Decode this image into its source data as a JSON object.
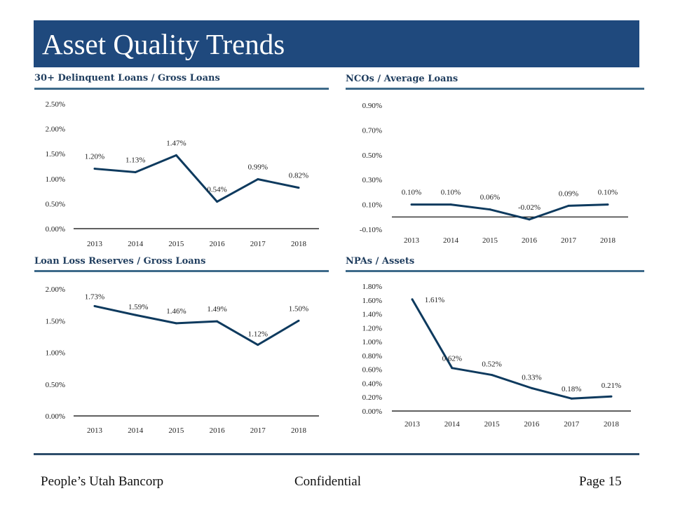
{
  "header": {
    "title": "Asset Quality Trends"
  },
  "colors": {
    "brand": "#1f497d",
    "line": "#0e3a5e",
    "rule": "#3e6a8a"
  },
  "footer": {
    "left": "People’s Utah Bancorp",
    "center": "Confidential",
    "right": "Page 15"
  },
  "chart_data": [
    {
      "type": "line",
      "title": "30+ Delinquent Loans / Gross Loans",
      "categories": [
        "2013",
        "2014",
        "2015",
        "2016",
        "2017",
        "2018"
      ],
      "values": [
        1.2,
        1.13,
        1.47,
        0.54,
        0.99,
        0.82
      ],
      "labels": [
        "1.20%",
        "1.13%",
        "1.47%",
        "0.54%",
        "0.99%",
        "0.82%"
      ],
      "yticks": [
        0,
        0.5,
        1.0,
        1.5,
        2.0,
        2.5
      ],
      "ytick_labels": [
        "0.00%",
        "0.50%",
        "1.00%",
        "1.50%",
        "2.00%",
        "2.50%"
      ],
      "ylim": [
        0,
        2.5
      ],
      "xlabel": "",
      "ylabel": "",
      "grid": false,
      "legend": "none"
    },
    {
      "type": "line",
      "title": "NCOs / Average Loans",
      "categories": [
        "2013",
        "2014",
        "2015",
        "2016",
        "2017",
        "2018"
      ],
      "values": [
        0.1,
        0.1,
        0.06,
        -0.02,
        0.09,
        0.1
      ],
      "labels": [
        "0.10%",
        "0.10%",
        "0.06%",
        "-0.02%",
        "0.09%",
        "0.10%"
      ],
      "yticks": [
        -0.1,
        0.1,
        0.3,
        0.5,
        0.7,
        0.9
      ],
      "ytick_labels": [
        "-0.10%",
        "0.10%",
        "0.30%",
        "0.50%",
        "0.70%",
        "0.90%"
      ],
      "ylim": [
        -0.1,
        0.9
      ],
      "axis_at": 0,
      "xlabel": "",
      "ylabel": "",
      "grid": false,
      "legend": "none"
    },
    {
      "type": "line",
      "title": "Loan Loss Reserves / Gross Loans",
      "categories": [
        "2013",
        "2014",
        "2015",
        "2016",
        "2017",
        "2018"
      ],
      "values": [
        1.73,
        1.59,
        1.46,
        1.49,
        1.12,
        1.5
      ],
      "labels": [
        "1.73%",
        "1.59%",
        "1.46%",
        "1.49%",
        "1.12%",
        "1.50%"
      ],
      "yticks": [
        0,
        0.5,
        1.0,
        1.5,
        2.0
      ],
      "ytick_labels": [
        "0.00%",
        "0.50%",
        "1.00%",
        "1.50%",
        "2.00%"
      ],
      "ylim": [
        0,
        2.0
      ],
      "xlabel": "",
      "ylabel": "",
      "grid": false,
      "legend": "none"
    },
    {
      "type": "line",
      "title": "NPAs / Assets",
      "categories": [
        "2013",
        "2014",
        "2015",
        "2016",
        "2017",
        "2018"
      ],
      "values": [
        1.61,
        0.62,
        0.52,
        0.33,
        0.18,
        0.21
      ],
      "labels": [
        "1.61%",
        "0.62%",
        "0.52%",
        "0.33%",
        "0.18%",
        "0.21%"
      ],
      "yticks": [
        0,
        0.2,
        0.4,
        0.6,
        0.8,
        1.0,
        1.2,
        1.4,
        1.6,
        1.8
      ],
      "ytick_labels": [
        "0.00%",
        "0.20%",
        "0.40%",
        "0.60%",
        "0.80%",
        "1.00%",
        "1.20%",
        "1.40%",
        "1.60%",
        "1.80%"
      ],
      "ylim": [
        0,
        1.8
      ],
      "xlabel": "",
      "ylabel": "",
      "grid": false,
      "legend": "none"
    }
  ]
}
